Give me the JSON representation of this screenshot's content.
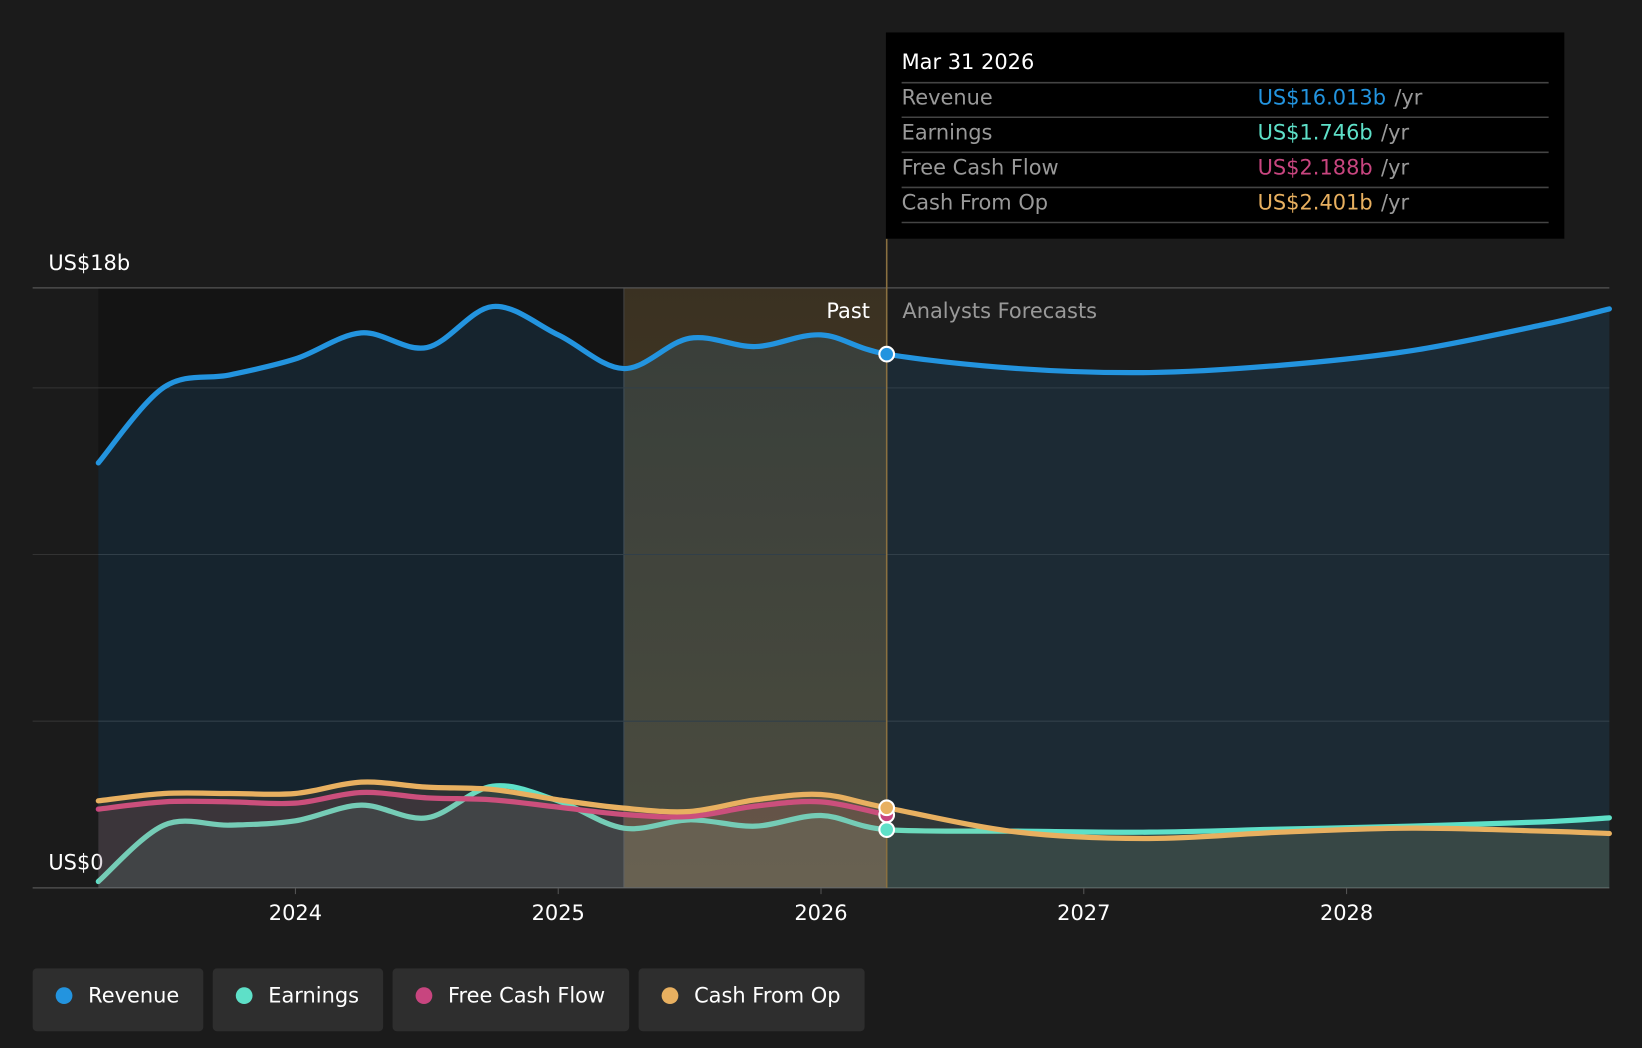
{
  "chart_data": {
    "type": "line",
    "x": [
      2023.25,
      2023.5,
      2023.75,
      2024.0,
      2024.25,
      2024.5,
      2024.75,
      2025.0,
      2025.25,
      2025.5,
      2025.75,
      2026.0,
      2026.25,
      2026.75,
      2027.25,
      2027.75,
      2028.25,
      2028.75,
      2029.0
    ],
    "xlim": [
      2023.0,
      2029.0
    ],
    "xticks": [
      2024,
      2025,
      2026,
      2027,
      2028
    ],
    "ylim": [
      0,
      18
    ],
    "yticks": [
      {
        "value": 0,
        "label": "US$0"
      },
      {
        "value": 18,
        "label": "US$18b"
      }
    ],
    "ygrid": [
      5,
      10,
      15
    ],
    "highlight_xlim": [
      2025.25,
      2026.25
    ],
    "annotations": {
      "past": "Past",
      "forecast": "Analysts Forecasts"
    },
    "series": [
      {
        "name": "Revenue",
        "color": "#2394df",
        "values": [
          12.75,
          15.02,
          15.39,
          15.87,
          16.65,
          16.21,
          17.44,
          16.59,
          15.58,
          16.49,
          16.24,
          16.59,
          16.013,
          15.58,
          15.46,
          15.68,
          16.12,
          16.9,
          17.37
        ]
      },
      {
        "name": "Earnings",
        "color": "#5ee0c8",
        "values": [
          0.19,
          1.88,
          1.88,
          2.01,
          2.48,
          2.1,
          3.05,
          2.61,
          1.79,
          2.04,
          1.85,
          2.17,
          1.746,
          1.7,
          1.67,
          1.76,
          1.85,
          1.98,
          2.1
        ]
      },
      {
        "name": "Free Cash Flow",
        "color": "#c8457f",
        "values": [
          2.36,
          2.58,
          2.58,
          2.54,
          2.86,
          2.7,
          2.64,
          2.42,
          2.2,
          2.14,
          2.45,
          2.58,
          2.188,
          null,
          null,
          null,
          null,
          null,
          null
        ]
      },
      {
        "name": "Cash From Op",
        "color": "#e8b060",
        "values": [
          2.61,
          2.83,
          2.83,
          2.83,
          3.17,
          3.02,
          2.95,
          2.64,
          2.39,
          2.29,
          2.64,
          2.8,
          2.401,
          1.67,
          1.48,
          1.67,
          1.79,
          1.7,
          1.63
        ]
      }
    ],
    "tooltip": {
      "title": "Mar 31 2026",
      "index": 12,
      "value_labels": [
        "US$16.013b",
        "US$1.746b",
        "US$2.188b",
        "US$2.401b"
      ],
      "unit": "/yr"
    },
    "legend": "bottom-left"
  }
}
